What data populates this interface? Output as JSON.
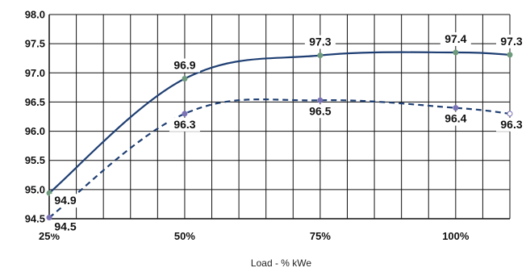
{
  "chart_data": {
    "type": "line",
    "title": "",
    "xlabel": "Load - % kWe",
    "ylabel": "",
    "xlim": [
      25,
      110
    ],
    "ylim": [
      94.5,
      98.0
    ],
    "grid": true,
    "x_ticks": [
      {
        "value": 25,
        "label": "25%"
      },
      {
        "value": 50,
        "label": "50%"
      },
      {
        "value": 75,
        "label": "75%"
      },
      {
        "value": 100,
        "label": "100%"
      }
    ],
    "y_ticks": [
      {
        "value": 94.5,
        "label": "94.5"
      },
      {
        "value": 95.0,
        "label": "95.0"
      },
      {
        "value": 95.5,
        "label": "95.5"
      },
      {
        "value": 96.0,
        "label": "96.0"
      },
      {
        "value": 96.5,
        "label": "96.5"
      },
      {
        "value": 97.0,
        "label": "97.0"
      },
      {
        "value": 97.5,
        "label": "97.5"
      },
      {
        "value": 98.0,
        "label": "98.0"
      }
    ],
    "series": [
      {
        "style": "solid",
        "color": "#1f3f73",
        "marker_color": "#6f9a7c",
        "points": [
          {
            "x": 25,
            "y": 94.94,
            "label": "94.9"
          },
          {
            "x": 50,
            "y": 96.9,
            "label": "96.9"
          },
          {
            "x": 75,
            "y": 97.3,
            "label": "97.3"
          },
          {
            "x": 100,
            "y": 97.35,
            "label": "97.4"
          },
          {
            "x": 110,
            "y": 97.31,
            "label": "97.3"
          }
        ]
      },
      {
        "style": "dashed",
        "color": "#1f3f73",
        "marker_color": "#7a73b5",
        "points": [
          {
            "x": 25,
            "y": 94.52,
            "label": "94.5"
          },
          {
            "x": 50,
            "y": 96.3,
            "label": "96.3"
          },
          {
            "x": 75,
            "y": 96.53,
            "label": "96.5"
          },
          {
            "x": 100,
            "y": 96.4,
            "label": "96.4"
          },
          {
            "x": 110,
            "y": 96.3,
            "label": "96.3"
          }
        ]
      }
    ]
  }
}
